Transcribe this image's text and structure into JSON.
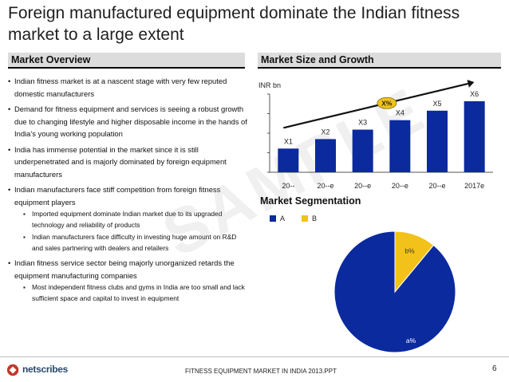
{
  "title": "Foreign manufactured equipment dominate the Indian fitness market to a large extent",
  "overview": {
    "heading": "Market Overview",
    "bullets": [
      {
        "text": "Indian fitness market is at a nascent stage with very few reputed domestic manufacturers",
        "subs": []
      },
      {
        "text": "Demand for fitness equipment and services is seeing a robust growth due to changing lifestyle and higher disposable income in the hands of India’s young working population",
        "subs": []
      },
      {
        "text": "India has immense potential in the market since it is still underpenetrated and is majorly dominated by foreign equipment manufacturers",
        "subs": []
      },
      {
        "text": "Indian manufacturers face stiff competition from foreign fitness equipment players",
        "subs": [
          "Imported equipment dominate Indian market due to its upgraded technology and reliability of products",
          "Indian manufacturers face difficulty in investing huge amount on R&D and sales partnering with dealers and retailers"
        ]
      },
      {
        "text": "Indian fitness service sector being majorly unorganized retards the equipment manufacturing companies",
        "subs": [
          "Most independent fitness clubs and gyms in India are too small and lack sufficient space and capital to invest in equipment"
        ]
      }
    ]
  },
  "size_growth": {
    "heading": "Market Size and Growth",
    "unit_label": "INR bn",
    "cagr_label": "X%"
  },
  "segmentation": {
    "heading": "Market Segmentation"
  },
  "watermark": "SAMPLE",
  "footer": {
    "brand": "netscribes",
    "text": "FITNESS EQUIPMENT MARKET IN INDIA 2013.PPT",
    "page": "6"
  },
  "colors": {
    "bar": "#0b2a9e",
    "segment_a": "#0b2a9e",
    "segment_b": "#f2c21a"
  },
  "chart_data": [
    {
      "type": "bar",
      "title": "Market Size and Growth",
      "ylabel": "INR bn",
      "categories": [
        "20--",
        "20--e",
        "20--e",
        "20--e",
        "20--e",
        "2017e"
      ],
      "values": [
        1.0,
        1.4,
        1.8,
        2.2,
        2.6,
        3.0
      ],
      "data_labels": [
        "X1",
        "X2",
        "X3",
        "X4",
        "X5",
        "X6"
      ],
      "ylim": [
        0,
        3.3
      ],
      "annotation": "X%"
    },
    {
      "type": "pie",
      "title": "Market Segmentation",
      "labels": [
        "A",
        "B"
      ],
      "values": [
        89,
        11
      ],
      "data_labels": [
        "a%",
        "b%"
      ],
      "legend": "top-left"
    }
  ]
}
